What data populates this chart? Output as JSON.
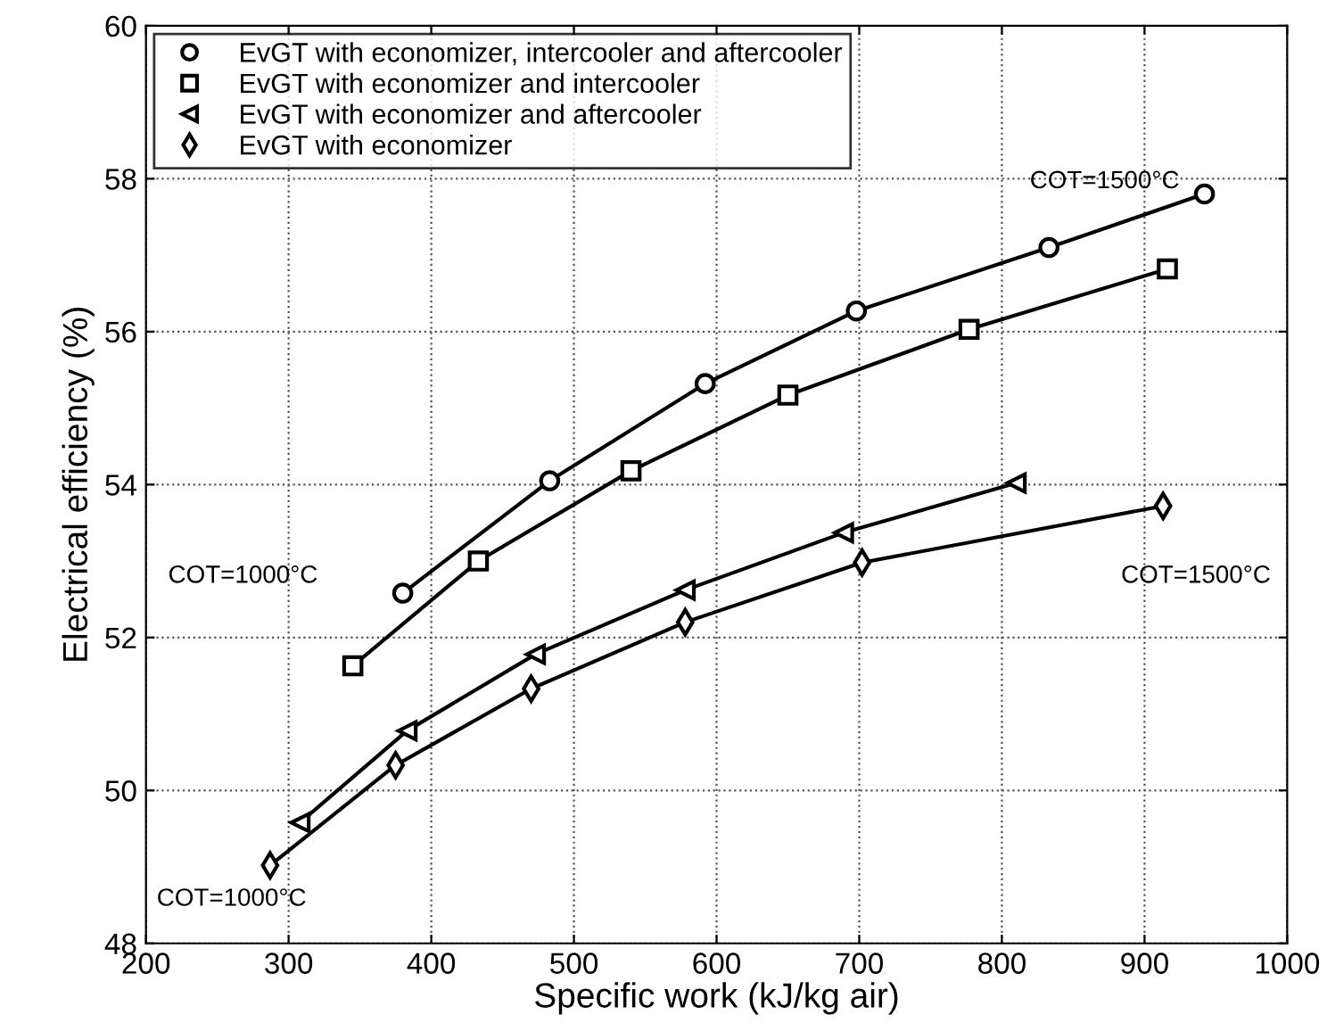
{
  "chart_data": {
    "type": "line",
    "xlabel": "Specific work (kJ/kg air)",
    "ylabel": "Electrical efficiency (%)",
    "xlim": [
      200,
      1000
    ],
    "xticks": [
      200,
      300,
      400,
      500,
      600,
      700,
      800,
      900,
      1000
    ],
    "ylim": [
      48,
      60
    ],
    "yticks": [
      48,
      50,
      52,
      54,
      56,
      58,
      60
    ],
    "grid": true,
    "legend": "top left",
    "line_style": "solid",
    "series": [
      {
        "name": "EvGT with economizer, intercooler and aftercooler",
        "color": "#000000",
        "marker": "circle",
        "x": [
          380,
          483,
          592,
          698,
          833,
          942
        ],
        "values": [
          52.58,
          54.05,
          55.32,
          56.27,
          57.1,
          57.8
        ]
      },
      {
        "name": "EvGT with economizer and intercooler",
        "color": "#000000",
        "marker": "square",
        "x": [
          345,
          433,
          540,
          650,
          777,
          916
        ],
        "values": [
          51.63,
          53.0,
          54.18,
          55.17,
          56.03,
          56.82
        ]
      },
      {
        "name": "EvGT with economizer and aftercooler",
        "color": "#000000",
        "marker": "triangle",
        "x": [
          308,
          383,
          473,
          578,
          689,
          810
        ],
        "values": [
          49.58,
          50.78,
          51.78,
          52.62,
          53.37,
          54.02
        ]
      },
      {
        "name": "EvGT with economizer",
        "color": "#000000",
        "marker": "diamond",
        "x": [
          287,
          375,
          470,
          578,
          702,
          913
        ],
        "values": [
          49.02,
          50.33,
          51.33,
          52.2,
          52.98,
          53.72
        ]
      }
    ],
    "annotations": [
      "COT=1500°C",
      "COT=1000°C",
      "COT=1500°C",
      "COT=1000°C"
    ]
  }
}
